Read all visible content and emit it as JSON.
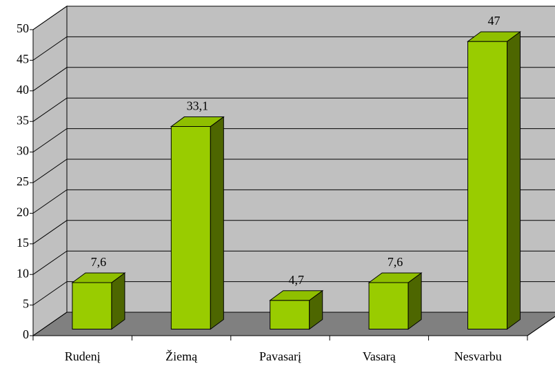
{
  "chart_data": {
    "type": "bar3d",
    "categories": [
      "Rudenį",
      "Žiemą",
      "Pavasarį",
      "Vasarą",
      "Nesvarbu"
    ],
    "values": [
      7.6,
      33.1,
      4.7,
      7.6,
      47
    ],
    "value_labels": [
      "7,6",
      "33,1",
      "4,7",
      "7,6",
      "47"
    ],
    "color": "#99cc00",
    "ylim": [
      0,
      50
    ],
    "yticks": [
      0,
      5,
      10,
      15,
      20,
      25,
      30,
      35,
      40,
      45,
      50
    ],
    "grid": true
  }
}
